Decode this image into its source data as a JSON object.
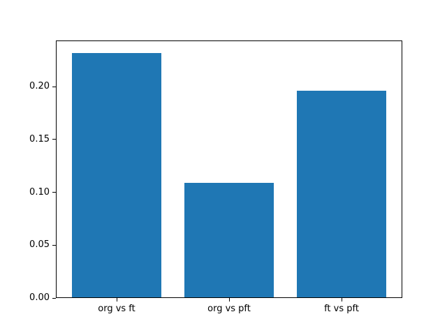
{
  "chart_data": {
    "type": "bar",
    "categories": [
      "org vs ft",
      "org vs pft",
      "ft vs pft"
    ],
    "values": [
      0.232,
      0.109,
      0.196
    ],
    "title": "",
    "xlabel": "",
    "ylabel": "",
    "xlim": [
      -0.54,
      2.54
    ],
    "ylim": [
      0,
      0.2436
    ],
    "bar_positions": [
      0,
      1,
      2
    ],
    "bar_width": 0.8,
    "yticks": [
      0.0,
      0.05,
      0.1,
      0.15,
      0.2
    ],
    "ytick_labels": [
      "0.00",
      "0.05",
      "0.10",
      "0.15",
      "0.20"
    ],
    "bar_color": "#1f77b4",
    "spine_color": "#000000",
    "background_color": "#ffffff",
    "grid": false,
    "legend": false
  }
}
